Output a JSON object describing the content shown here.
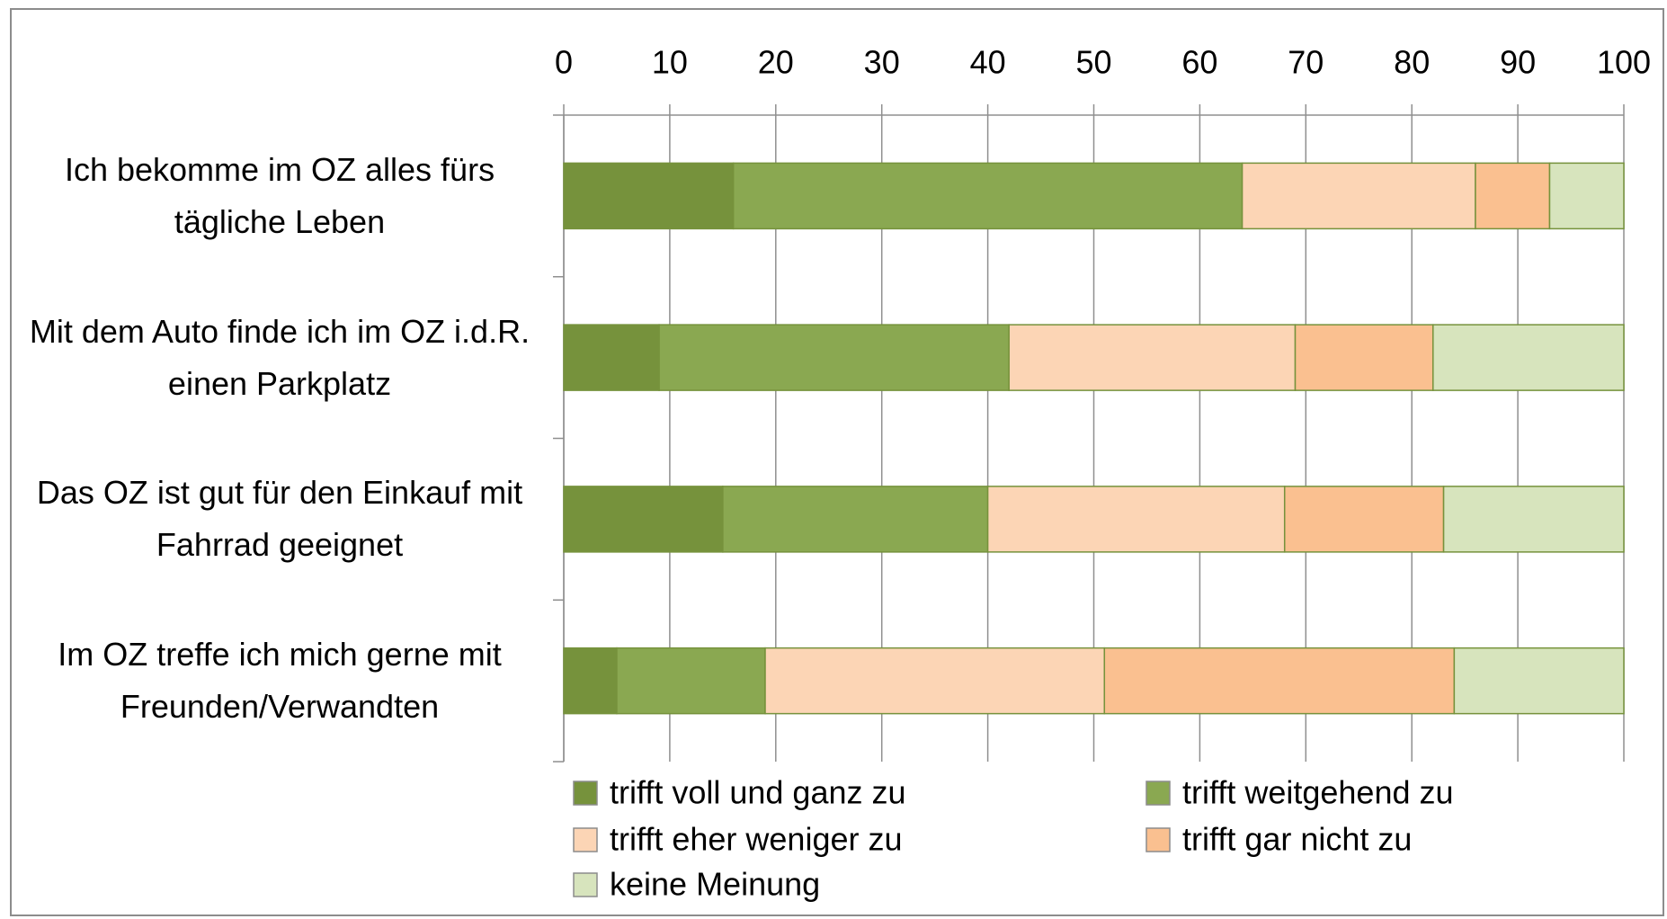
{
  "chart_data": {
    "type": "stacked-barh",
    "categories": [
      "Ich bekomme im OZ alles fürs tägliche Leben",
      "Mit dem Auto finde ich im OZ i.d.R. einen Parkplatz",
      "Das OZ ist gut für den Einkauf mit Fahrrad geeignet",
      "Im OZ treffe ich mich gerne mit Freunden/Verwandten"
    ],
    "series": [
      {
        "name": "trifft voll und ganz zu",
        "color": "#76923c",
        "values": [
          16,
          9,
          15,
          5
        ]
      },
      {
        "name": "trifft weitgehend zu",
        "color": "#8aa851",
        "values": [
          48,
          33,
          25,
          14
        ]
      },
      {
        "name": "trifft eher weniger zu",
        "color": "#fcd5b5",
        "values": [
          22,
          27,
          28,
          32
        ]
      },
      {
        "name": "trifft gar nicht zu",
        "color": "#fac090",
        "values": [
          7,
          13,
          15,
          33
        ]
      },
      {
        "name": "keine Meinung",
        "color": "#d7e4bd",
        "values": [
          7,
          18,
          17,
          16
        ]
      }
    ],
    "xlim": [
      0,
      100
    ],
    "xticks": [
      0,
      10,
      20,
      30,
      40,
      50,
      60,
      70,
      80,
      90,
      100
    ],
    "grid": true
  }
}
